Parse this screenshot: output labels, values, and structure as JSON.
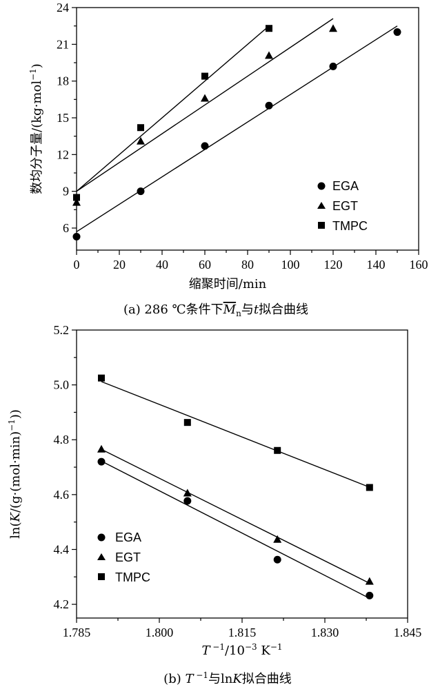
{
  "chart_data": [
    {
      "id": "a",
      "type": "scatter",
      "caption_parts": [
        "(a) 286 ℃条件下",
        "M",
        "n",
        "与",
        "t",
        "拟合曲线"
      ],
      "xlabel": "缩聚时间/min",
      "ylabel_parts": [
        "数均分子量/(kg·mol",
        "−1",
        ")"
      ],
      "xlim": [
        0,
        160
      ],
      "ylim": [
        4.2,
        24
      ],
      "xticks": [
        0,
        20,
        40,
        60,
        80,
        100,
        120,
        140,
        160
      ],
      "xtick_labels": [
        "0",
        "20",
        "40",
        "60",
        "80",
        "100",
        "120",
        "140",
        "160"
      ],
      "yticks": [
        6,
        9,
        12,
        15,
        18,
        21,
        24
      ],
      "ytick_labels": [
        "6",
        "9",
        "12",
        "15",
        "18",
        "21",
        "24"
      ],
      "legend_position": "lower-right",
      "series": [
        {
          "name": "EGA",
          "marker": "circle",
          "x": [
            0,
            30,
            60,
            90,
            120,
            150
          ],
          "y": [
            5.3,
            9.0,
            12.7,
            16.0,
            19.2,
            22.0
          ],
          "fit": {
            "x": [
              0,
              150
            ],
            "y": [
              5.7,
              22.5
            ]
          }
        },
        {
          "name": "EGT",
          "marker": "triangle",
          "x": [
            0,
            30,
            60,
            90,
            120
          ],
          "y": [
            8.1,
            13.1,
            16.6,
            20.1,
            22.3
          ],
          "fit": {
            "x": [
              0,
              120
            ],
            "y": [
              9.0,
              23.1
            ]
          }
        },
        {
          "name": "TMPC",
          "marker": "square",
          "x": [
            0,
            30,
            60,
            90
          ],
          "y": [
            8.5,
            14.2,
            18.4,
            22.3
          ],
          "fit": {
            "x": [
              0,
              90
            ],
            "y": [
              9.0,
              22.5
            ]
          }
        }
      ]
    },
    {
      "id": "b",
      "type": "scatter",
      "caption_parts": [
        "(b) ",
        "T",
        " −1",
        "与ln",
        "K",
        "拟合曲线"
      ],
      "xlabel_parts": [
        "T",
        " −1",
        "/10",
        "−3",
        " K",
        "−1"
      ],
      "ylabel_parts": [
        "ln(",
        "K",
        "/(g·(mol·min)",
        "−1",
        "))"
      ],
      "xlim": [
        1.785,
        1.845
      ],
      "ylim": [
        4.15,
        5.2
      ],
      "xticks": [
        1.785,
        1.8,
        1.815,
        1.83,
        1.845
      ],
      "xtick_labels": [
        "1.785",
        "1.800",
        "1.815",
        "1.830",
        "1.845"
      ],
      "yticks": [
        4.2,
        4.4,
        4.6,
        4.8,
        5.0,
        5.2
      ],
      "ytick_labels": [
        "4.2",
        "4.4",
        "4.6",
        "4.8",
        "5.0",
        "5.2"
      ],
      "legend_position": "lower-left",
      "series": [
        {
          "name": "EGA",
          "marker": "circle",
          "x": [
            1.7895,
            1.8051,
            1.8214,
            1.8381
          ],
          "y": [
            4.72,
            4.577,
            4.363,
            4.232
          ],
          "fit": {
            "x": [
              1.7895,
              1.8381
            ],
            "y": [
              4.722,
              4.222
            ]
          }
        },
        {
          "name": "EGT",
          "marker": "triangle",
          "x": [
            1.7895,
            1.8051,
            1.8214,
            1.8381
          ],
          "y": [
            4.766,
            4.606,
            4.437,
            4.284
          ],
          "fit": {
            "x": [
              1.7895,
              1.8381
            ],
            "y": [
              4.765,
              4.277
            ]
          }
        },
        {
          "name": "TMPC",
          "marker": "square",
          "x": [
            1.7895,
            1.8051,
            1.8214,
            1.8381
          ],
          "y": [
            5.025,
            4.863,
            4.761,
            4.626
          ],
          "fit": {
            "x": [
              1.7895,
              1.8381
            ],
            "y": [
              5.012,
              4.627
            ]
          }
        }
      ]
    }
  ]
}
